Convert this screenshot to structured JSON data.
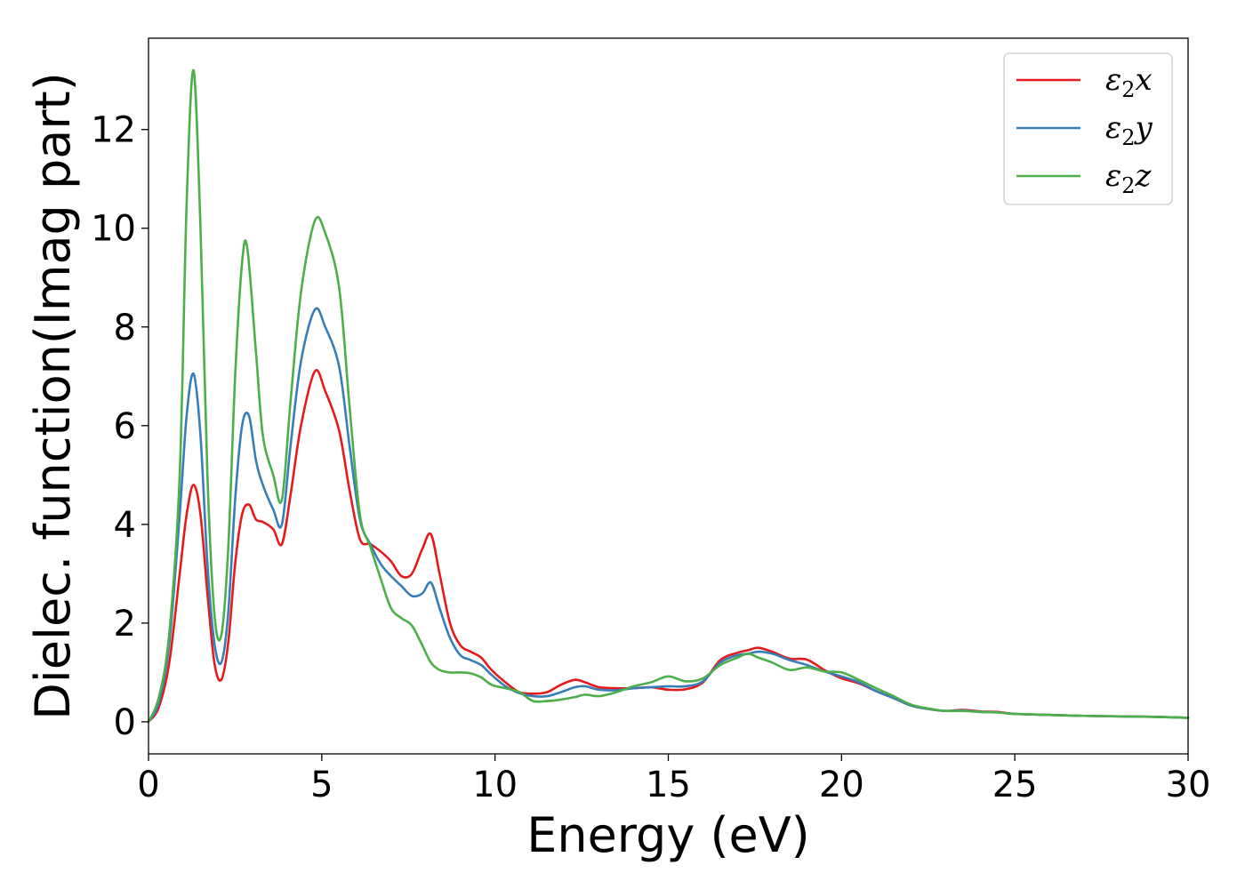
{
  "chart_data": {
    "type": "line",
    "xlabel": "Energy (eV)",
    "ylabel": "Dielec. function(Imag part)",
    "xlim": [
      0,
      30
    ],
    "ylim": [
      -0.65,
      13.85
    ],
    "xticks": [
      0,
      5,
      10,
      15,
      20,
      25,
      30
    ],
    "yticks": [
      0,
      2,
      4,
      6,
      8,
      10,
      12
    ],
    "grid": false,
    "legend_position": "top-right",
    "series": [
      {
        "name": "ε2x",
        "legend_base": "ε",
        "legend_sub": "2",
        "legend_suffix": "x",
        "color": "#e41a1c",
        "x": [
          0,
          0.3,
          0.6,
          0.9,
          1.1,
          1.3,
          1.5,
          1.7,
          1.9,
          2.1,
          2.3,
          2.5,
          2.7,
          2.9,
          3.1,
          3.3,
          3.6,
          3.85,
          4.1,
          4.4,
          4.8,
          5.1,
          5.5,
          5.8,
          6.1,
          6.4,
          6.7,
          7.0,
          7.3,
          7.6,
          7.9,
          8.15,
          8.4,
          8.7,
          9.0,
          9.3,
          9.6,
          9.9,
          10.3,
          10.7,
          11.1,
          11.5,
          11.9,
          12.3,
          12.6,
          13.0,
          13.5,
          14.0,
          14.5,
          15.0,
          15.5,
          16.0,
          16.5,
          17.0,
          17.3,
          17.6,
          18.0,
          18.5,
          19.0,
          19.5,
          20.0,
          20.5,
          21.0,
          21.5,
          22.0,
          22.5,
          23.0,
          23.5,
          24.0,
          24.5,
          25.0,
          26.0,
          27.0,
          28.0,
          29.0,
          30.0
        ],
        "y": [
          0,
          0.3,
          1.2,
          3.0,
          4.2,
          4.8,
          4.2,
          2.6,
          1.2,
          0.85,
          1.6,
          3.2,
          4.2,
          4.4,
          4.1,
          4.05,
          3.9,
          3.6,
          4.6,
          6.0,
          7.1,
          6.7,
          5.9,
          4.7,
          3.7,
          3.6,
          3.45,
          3.25,
          2.95,
          3.0,
          3.5,
          3.8,
          3.0,
          2.0,
          1.55,
          1.42,
          1.3,
          1.05,
          0.8,
          0.6,
          0.57,
          0.6,
          0.75,
          0.85,
          0.8,
          0.7,
          0.68,
          0.68,
          0.7,
          0.65,
          0.66,
          0.8,
          1.25,
          1.4,
          1.45,
          1.5,
          1.42,
          1.28,
          1.26,
          1.05,
          0.88,
          0.78,
          0.62,
          0.48,
          0.33,
          0.26,
          0.22,
          0.24,
          0.21,
          0.2,
          0.16,
          0.14,
          0.12,
          0.11,
          0.1,
          0.08
        ]
      },
      {
        "name": "ε2y",
        "legend_base": "ε",
        "legend_sub": "2",
        "legend_suffix": "y",
        "color": "#377eb8",
        "x": [
          0,
          0.3,
          0.6,
          0.9,
          1.1,
          1.3,
          1.5,
          1.7,
          1.9,
          2.1,
          2.3,
          2.5,
          2.7,
          2.9,
          3.1,
          3.3,
          3.6,
          3.85,
          4.1,
          4.4,
          4.8,
          5.1,
          5.5,
          5.8,
          6.1,
          6.4,
          6.7,
          7.0,
          7.3,
          7.6,
          7.9,
          8.15,
          8.4,
          8.7,
          9.0,
          9.3,
          9.6,
          9.9,
          10.3,
          10.7,
          11.1,
          11.5,
          11.9,
          12.3,
          12.6,
          13.0,
          13.5,
          14.0,
          14.5,
          15.0,
          15.5,
          16.0,
          16.5,
          17.0,
          17.3,
          17.6,
          18.0,
          18.5,
          19.0,
          19.5,
          20.0,
          20.5,
          21.0,
          21.5,
          22.0,
          22.5,
          23.0,
          23.5,
          24.0,
          24.5,
          25.0,
          26.0,
          27.0,
          28.0,
          29.0,
          30.0
        ],
        "y": [
          0,
          0.4,
          1.6,
          4.2,
          6.2,
          7.05,
          5.8,
          3.2,
          1.6,
          1.2,
          2.2,
          4.5,
          6.0,
          6.2,
          5.3,
          4.8,
          4.3,
          4.0,
          5.6,
          7.3,
          8.35,
          8.0,
          7.2,
          5.6,
          4.1,
          3.6,
          3.2,
          2.95,
          2.75,
          2.55,
          2.6,
          2.82,
          2.3,
          1.7,
          1.35,
          1.25,
          1.15,
          0.95,
          0.72,
          0.58,
          0.52,
          0.52,
          0.6,
          0.7,
          0.72,
          0.65,
          0.64,
          0.68,
          0.7,
          0.72,
          0.72,
          0.82,
          1.2,
          1.35,
          1.38,
          1.42,
          1.38,
          1.25,
          1.15,
          1.02,
          0.92,
          0.8,
          0.62,
          0.48,
          0.33,
          0.26,
          0.22,
          0.23,
          0.2,
          0.19,
          0.16,
          0.14,
          0.12,
          0.11,
          0.1,
          0.08
        ]
      },
      {
        "name": "ε2z",
        "legend_base": "ε",
        "legend_sub": "2",
        "legend_suffix": "z",
        "color": "#4daf4a",
        "x": [
          0,
          0.3,
          0.6,
          0.9,
          1.1,
          1.3,
          1.5,
          1.7,
          1.9,
          2.1,
          2.3,
          2.5,
          2.7,
          2.85,
          3.1,
          3.3,
          3.6,
          3.85,
          4.1,
          4.4,
          4.8,
          5.1,
          5.5,
          5.8,
          6.1,
          6.4,
          6.7,
          7.0,
          7.3,
          7.6,
          7.9,
          8.15,
          8.4,
          8.7,
          9.0,
          9.3,
          9.6,
          9.9,
          10.3,
          10.7,
          11.1,
          11.5,
          11.9,
          12.3,
          12.6,
          13.0,
          13.5,
          14.0,
          14.5,
          15.0,
          15.5,
          16.0,
          16.5,
          17.0,
          17.3,
          17.6,
          18.0,
          18.5,
          19.0,
          19.5,
          20.0,
          20.5,
          21.0,
          21.5,
          22.0,
          22.5,
          23.0,
          23.5,
          24.0,
          24.5,
          25.0,
          26.0,
          27.0,
          28.0,
          29.0,
          30.0
        ],
        "y": [
          0,
          0.5,
          1.8,
          5.0,
          10.5,
          13.2,
          10.0,
          5.0,
          2.2,
          1.75,
          3.5,
          7.0,
          9.3,
          9.6,
          7.5,
          5.8,
          5.0,
          4.5,
          6.5,
          8.7,
          10.15,
          9.9,
          8.8,
          6.4,
          4.2,
          3.55,
          2.9,
          2.3,
          2.1,
          1.95,
          1.55,
          1.2,
          1.05,
          1.0,
          1.0,
          0.98,
          0.9,
          0.75,
          0.68,
          0.6,
          0.42,
          0.42,
          0.45,
          0.5,
          0.55,
          0.52,
          0.6,
          0.72,
          0.8,
          0.92,
          0.82,
          0.88,
          1.15,
          1.3,
          1.38,
          1.3,
          1.2,
          1.05,
          1.1,
          1.02,
          1.0,
          0.85,
          0.68,
          0.52,
          0.35,
          0.27,
          0.22,
          0.22,
          0.2,
          0.19,
          0.16,
          0.14,
          0.12,
          0.11,
          0.1,
          0.08
        ]
      }
    ]
  }
}
